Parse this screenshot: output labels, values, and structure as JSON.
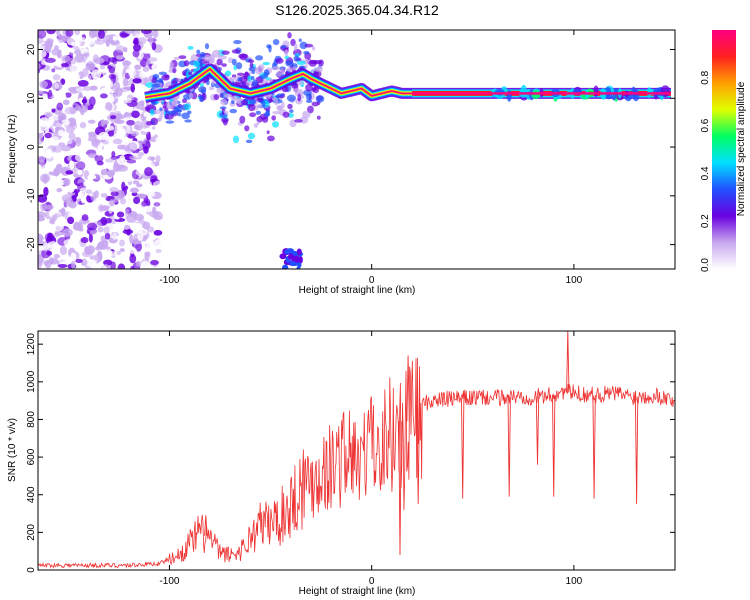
{
  "page": {
    "title": "S126.2025.365.04.34.R12"
  },
  "chart_data": [
    {
      "type": "heatmap",
      "xlabel": "Height of straight line (km)",
      "ylabel": "Frequency (Hz)",
      "xlim": [
        -165,
        150
      ],
      "ylim": [
        -25,
        24
      ],
      "xticks": [
        -100,
        0,
        100
      ],
      "xtick_labels": [
        "-100",
        "0",
        "100"
      ],
      "yticks": [
        -20,
        -10,
        0,
        10,
        20
      ],
      "ytick_labels": [
        "-20",
        "-10",
        "0",
        "10",
        "20"
      ],
      "grid": false,
      "ridge": {
        "x": [
          -115,
          -100,
          -90,
          -80,
          -70,
          -60,
          -50,
          -40,
          -34,
          -30,
          -25,
          -20,
          -15,
          -10,
          -5,
          0,
          5,
          10,
          15,
          20,
          40,
          60,
          80,
          100,
          120,
          140,
          148
        ],
        "y": [
          10,
          11,
          13,
          16,
          12,
          11,
          12,
          14,
          15,
          14,
          13,
          12,
          11,
          11.5,
          12,
          10.5,
          11,
          11.5,
          11,
          11,
          11,
          11,
          11,
          11,
          11,
          11,
          11
        ]
      },
      "noise_region": {
        "x": [
          -165,
          -105
        ],
        "y": [
          -25,
          24
        ]
      },
      "colorbar": {
        "label": "Normalized spectral amplitude",
        "range": [
          0,
          1
        ],
        "ticks": [
          0.0,
          0.2,
          0.4,
          0.6,
          0.8
        ],
        "tick_labels": [
          "0.0",
          "0.2",
          "0.4",
          "0.6",
          "0.8"
        ],
        "colormap": [
          "#ffffff",
          "#c8a8f0",
          "#6a00e0",
          "#2050ff",
          "#00e0ff",
          "#00ff60",
          "#e0ff00",
          "#ffa000",
          "#ff2020",
          "#ff0080"
        ]
      }
    },
    {
      "type": "line",
      "xlabel": "Height of straight line (km)",
      "ylabel": "SNR (10 * v/v)",
      "xlim": [
        -165,
        150
      ],
      "ylim": [
        0,
        1270
      ],
      "xticks": [
        -100,
        0,
        100
      ],
      "xtick_labels": [
        "-100",
        "0",
        "100"
      ],
      "yticks": [
        0,
        200,
        400,
        600,
        800,
        1000,
        1200
      ],
      "ytick_labels": [
        "0",
        "200",
        "400",
        "600",
        "800",
        "1000",
        "1200"
      ],
      "grid": false,
      "series": [
        {
          "name": "SNR",
          "color": "#ee3333",
          "x": [
            -165,
            -140,
            -120,
            -105,
            -95,
            -90,
            -85,
            -80,
            -75,
            -70,
            -65,
            -60,
            -55,
            -50,
            -45,
            -40,
            -35,
            -30,
            -25,
            -20,
            -15,
            -10,
            -5,
            0,
            5,
            10,
            12,
            14,
            16,
            20,
            25,
            30,
            40,
            50,
            60,
            70,
            80,
            90,
            95,
            100,
            110,
            120,
            130,
            140,
            150
          ],
          "values": [
            25,
            25,
            25,
            35,
            80,
            140,
            200,
            170,
            90,
            80,
            100,
            170,
            240,
            250,
            280,
            350,
            450,
            470,
            520,
            550,
            600,
            620,
            640,
            660,
            720,
            750,
            680,
            790,
            760,
            820,
            880,
            900,
            910,
            915,
            915,
            920,
            920,
            930,
            950,
            940,
            930,
            940,
            920,
            930,
            900
          ]
        }
      ],
      "spikes": {
        "x": [
          -82,
          14,
          18,
          23,
          45,
          68,
          82,
          90,
          97,
          110,
          131
        ],
        "values": [
          290,
          80,
          1140,
          350,
          380,
          390,
          560,
          390,
          1270,
          380,
          350
        ]
      }
    }
  ]
}
